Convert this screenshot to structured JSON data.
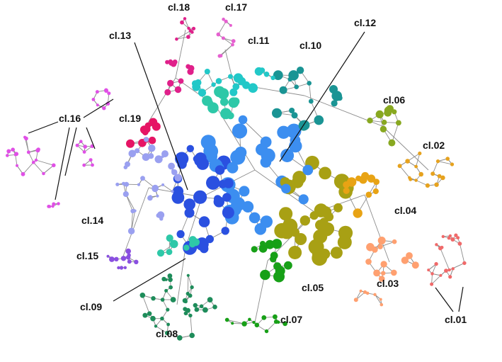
{
  "figure": {
    "type": "network cluster diagram",
    "edge_color": "#8c8c8c",
    "background": "#ffffff"
  },
  "clusters": [
    {
      "id": "cl.01",
      "color": "#f06a6a"
    },
    {
      "id": "cl.02",
      "color": "#e6a21e"
    },
    {
      "id": "cl.03",
      "color": "#ffa070"
    },
    {
      "id": "cl.04",
      "color": "#e8a314"
    },
    {
      "id": "cl.05",
      "color": "#a8a014"
    },
    {
      "id": "cl.06",
      "color": "#88a820"
    },
    {
      "id": "cl.07",
      "color": "#17a017"
    },
    {
      "id": "cl.08",
      "color": "#1e8c5a"
    },
    {
      "id": "cl.09",
      "color": "#2ec8a8"
    },
    {
      "id": "cl.10",
      "color": "#1a9494"
    },
    {
      "id": "cl.11",
      "color": "#22c8c8"
    },
    {
      "id": "cl.12",
      "color": "#3c8ef0"
    },
    {
      "id": "cl.13",
      "color": "#2a50e0"
    },
    {
      "id": "cl.14",
      "color": "#9aa0f0"
    },
    {
      "id": "cl.15",
      "color": "#8a50e0"
    },
    {
      "id": "cl.16",
      "color": "#e050e6"
    },
    {
      "id": "cl.17",
      "color": "#e660d0"
    },
    {
      "id": "cl.18",
      "color": "#e0208a"
    },
    {
      "id": "cl.19",
      "color": "#e61464"
    }
  ]
}
